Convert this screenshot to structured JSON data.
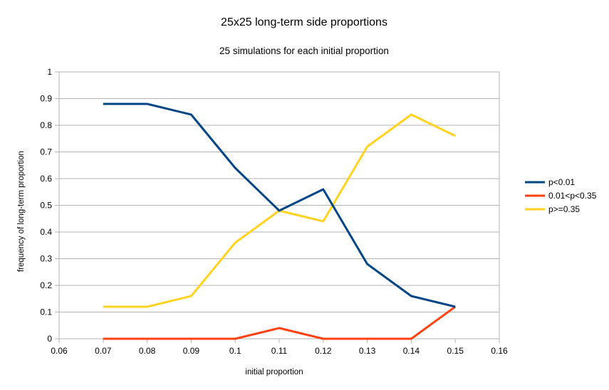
{
  "chart_data": {
    "type": "line",
    "title": "25x25 long-term side proportions",
    "subtitle": "25 simulations for each initial proportion",
    "xlabel": "initial proportion",
    "ylabel": "frequency of long-term proportion",
    "xlim": [
      0.06,
      0.16
    ],
    "ylim": [
      0,
      1
    ],
    "x_ticks": [
      "0.06",
      "0.07",
      "0.08",
      "0.09",
      "0.1",
      "0.11",
      "0.12",
      "0.13",
      "0.14",
      "0.15",
      "0.16"
    ],
    "y_ticks": [
      "0",
      "0.1",
      "0.2",
      "0.3",
      "0.4",
      "0.5",
      "0.6",
      "0.7",
      "0.8",
      "0.9",
      "1"
    ],
    "grid": "horizontal",
    "legend": "right",
    "x": [
      0.07,
      0.08,
      0.09,
      0.1,
      0.11,
      0.12,
      0.13,
      0.14,
      0.15
    ],
    "series": [
      {
        "name": "p<0.01",
        "color": "#004586",
        "values": [
          0.88,
          0.88,
          0.84,
          0.64,
          0.48,
          0.56,
          0.28,
          0.16,
          0.12
        ]
      },
      {
        "name": "0.01<p<0.35",
        "color": "#ff420e",
        "values": [
          0,
          0,
          0,
          0,
          0.04,
          0,
          0,
          0,
          0.12
        ]
      },
      {
        "name": "p>=0.35",
        "color": "#ffd320",
        "values": [
          0.12,
          0.12,
          0.16,
          0.36,
          0.48,
          0.44,
          0.72,
          0.84,
          0.76
        ]
      }
    ]
  }
}
